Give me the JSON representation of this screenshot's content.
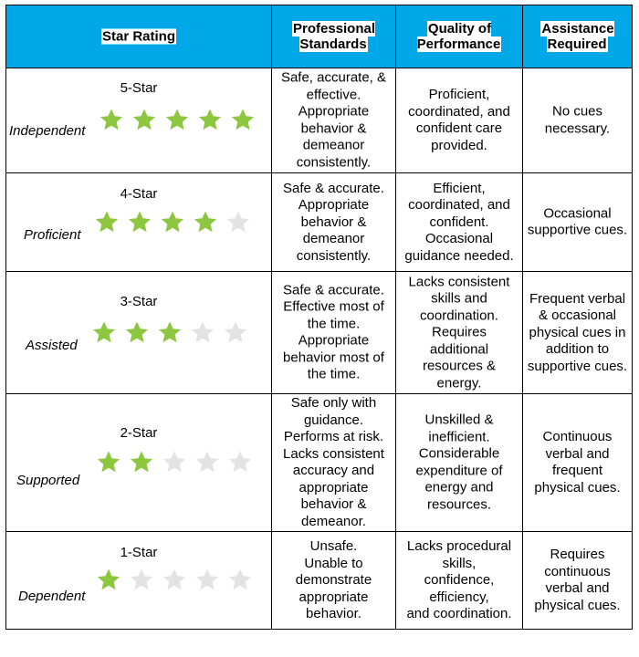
{
  "headers": {
    "star_rating": "Star Rating",
    "professional_standards": "Professional\nStandards",
    "quality_of_performance": "Quality of\nPerformance",
    "assistance_required": "Assistance\nRequired"
  },
  "max_stars": 5,
  "colors": {
    "header_bg": "#00a8e8",
    "star_filled": "#8dc63f",
    "star_empty": "#e3e3e3"
  },
  "rows": [
    {
      "level": "5-Star",
      "name": "Independent",
      "stars": 5,
      "professional": "Safe, accurate, &\neffective.\nAppropriate\nbehavior &\ndemeanor\nconsistently.",
      "quality": "Proficient,\ncoordinated, and\nconfident care\nprovided.",
      "assistance": "No cues\nnecessary."
    },
    {
      "level": "4-Star",
      "name": "Proficient",
      "stars": 4,
      "professional": "Safe & accurate.\nAppropriate\nbehavior &\ndemeanor\nconsistently.",
      "quality": "Efficient,\ncoordinated, and\nconfident.\nOccasional\nguidance needed.",
      "assistance": "Occasional\nsupportive cues."
    },
    {
      "level": "3-Star",
      "name": "Assisted",
      "stars": 3,
      "professional": "Safe & accurate.\nEffective most of\nthe time.\nAppropriate\nbehavior most of\nthe time.",
      "quality": "Lacks consistent\nskills and\ncoordination.\nRequires\nadditional\nresources &\nenergy.",
      "assistance": "Frequent verbal\n& occasional\nphysical cues in\naddition to\nsupportive cues."
    },
    {
      "level": "2-Star",
      "name": "Supported",
      "stars": 2,
      "professional": "Safe only with\nguidance.\nPerforms at risk.\nLacks consistent\naccuracy and\nappropriate\nbehavior &\ndemeanor.",
      "quality": "Unskilled &\ninefficient.\nConsiderable\nexpenditure of\nenergy and\nresources.",
      "assistance": "Continuous\nverbal and\nfrequent\nphysical cues."
    },
    {
      "level": "1-Star",
      "name": "Dependent",
      "stars": 1,
      "professional": "Unsafe.\nUnable to\ndemonstrate\nappropriate\nbehavior.",
      "quality": "Lacks procedural\nskills,\nconfidence,\nefficiency,\nand coordination.",
      "assistance": "Requires\ncontinuous\nverbal and\nphysical cues."
    }
  ]
}
